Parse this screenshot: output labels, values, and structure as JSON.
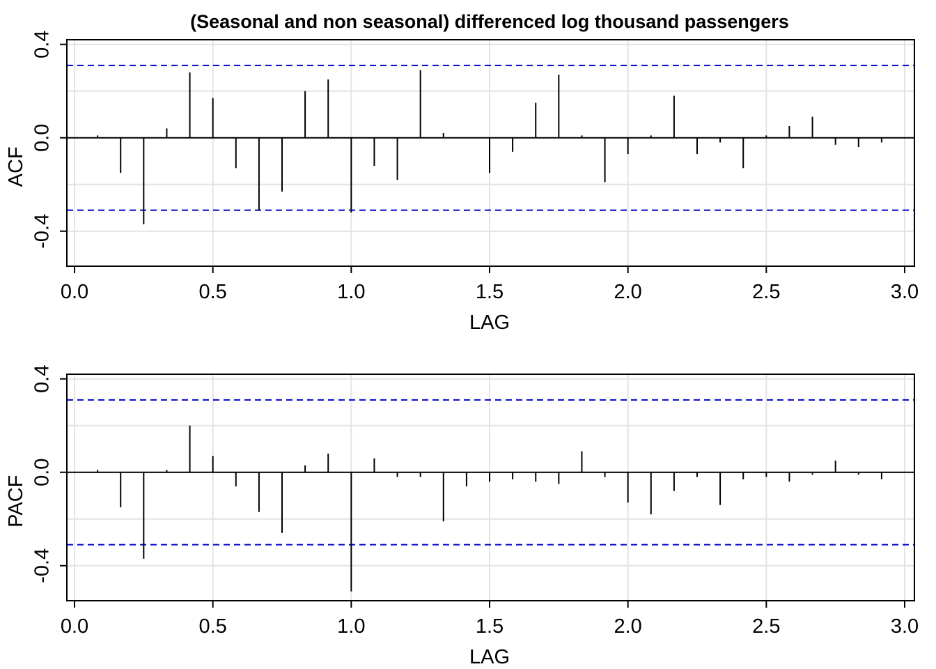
{
  "title": "(Seasonal and non seasonal) differenced log thousand passengers",
  "colors": {
    "bars": "#000000",
    "confidence": "#0000cc",
    "grid": "#e3e3e3"
  },
  "chart_data": [
    {
      "type": "bar",
      "name": "acf",
      "ylabel": "ACF",
      "xlabel": "LAG",
      "xlim": [
        0,
        3
      ],
      "ylim": [
        -0.55,
        0.42
      ],
      "xticks": [
        "0.0",
        "0.5",
        "1.0",
        "1.5",
        "2.0",
        "2.5",
        "3.0"
      ],
      "yticks": [
        "-0.4",
        "0.0",
        "0.4"
      ],
      "grid": true,
      "confidence_bound": 0.31,
      "x": [
        0.0833,
        0.1667,
        0.25,
        0.3333,
        0.4167,
        0.5,
        0.5833,
        0.6667,
        0.75,
        0.8333,
        0.9167,
        1.0,
        1.0833,
        1.1667,
        1.25,
        1.3333,
        1.4167,
        1.5,
        1.5833,
        1.6667,
        1.75,
        1.8333,
        1.9167,
        2.0,
        2.0833,
        2.1667,
        2.25,
        2.3333,
        2.4167,
        2.5,
        2.5833,
        2.6667,
        2.75,
        2.8333,
        2.9167
      ],
      "values": [
        0.01,
        -0.15,
        -0.37,
        0.04,
        0.28,
        0.17,
        -0.13,
        -0.31,
        -0.23,
        0.2,
        0.25,
        -0.32,
        -0.12,
        -0.18,
        0.29,
        0.02,
        0.0,
        -0.15,
        -0.06,
        0.15,
        0.27,
        0.01,
        -0.19,
        -0.07,
        0.01,
        0.18,
        -0.07,
        -0.02,
        -0.13,
        0.01,
        0.05,
        0.09,
        -0.03,
        -0.04,
        -0.02
      ]
    },
    {
      "type": "bar",
      "name": "pacf",
      "ylabel": "PACF",
      "xlabel": "LAG",
      "xlim": [
        0,
        3
      ],
      "ylim": [
        -0.55,
        0.42
      ],
      "xticks": [
        "0.0",
        "0.5",
        "1.0",
        "1.5",
        "2.0",
        "2.5",
        "3.0"
      ],
      "yticks": [
        "-0.4",
        "0.0",
        "0.4"
      ],
      "grid": true,
      "confidence_bound": 0.31,
      "x": [
        0.0833,
        0.1667,
        0.25,
        0.3333,
        0.4167,
        0.5,
        0.5833,
        0.6667,
        0.75,
        0.8333,
        0.9167,
        1.0,
        1.0833,
        1.1667,
        1.25,
        1.3333,
        1.4167,
        1.5,
        1.5833,
        1.6667,
        1.75,
        1.8333,
        1.9167,
        2.0,
        2.0833,
        2.1667,
        2.25,
        2.3333,
        2.4167,
        2.5,
        2.5833,
        2.6667,
        2.75,
        2.8333,
        2.9167
      ],
      "values": [
        0.01,
        -0.15,
        -0.37,
        0.01,
        0.2,
        0.07,
        -0.06,
        -0.17,
        -0.26,
        0.03,
        0.08,
        -0.51,
        0.06,
        -0.02,
        -0.02,
        -0.21,
        -0.06,
        -0.04,
        -0.03,
        -0.04,
        -0.05,
        0.09,
        -0.02,
        -0.13,
        -0.18,
        -0.08,
        -0.02,
        -0.14,
        -0.03,
        -0.02,
        -0.04,
        -0.01,
        0.05,
        -0.01,
        -0.03
      ]
    }
  ]
}
